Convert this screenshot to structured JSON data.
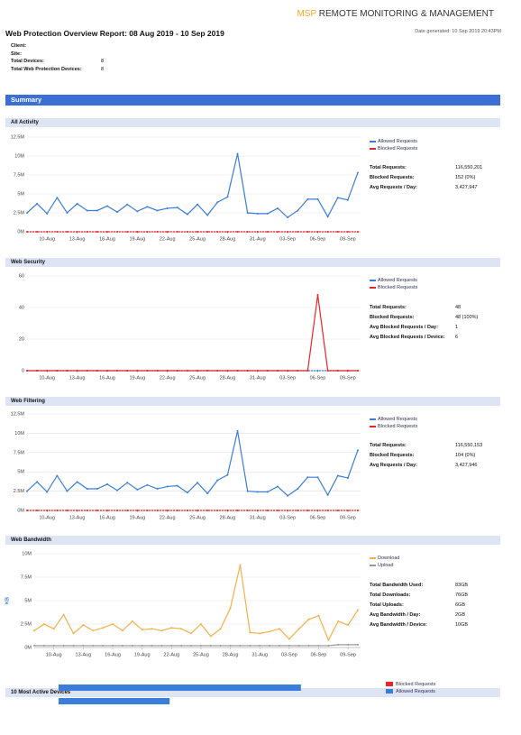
{
  "header": {
    "logo_brand": "MSP",
    "logo_text": "REMOTE MONITORING & MANAGEMENT",
    "title": "Web Protection Overview Report: 08 Aug 2019 - 10 Sep 2019",
    "generated": "Date generated: 10 Sep 2019 20:43PM"
  },
  "info": [
    [
      "Client:"
    ],
    [
      "Site:"
    ],
    [
      "Total Devices:",
      "8"
    ],
    [
      "Total Web Protection Devices:",
      "8"
    ]
  ],
  "summary": "Summary",
  "chart_data": [
    {
      "type": "line",
      "title": "All Activity",
      "categories": [
        null,
        null,
        "10-Aug",
        null,
        null,
        "13-Aug",
        null,
        null,
        "16-Aug",
        null,
        null,
        "19-Aug",
        null,
        null,
        "22-Aug",
        null,
        null,
        "25-Aug",
        null,
        null,
        "28-Aug",
        null,
        null,
        "31-Aug",
        null,
        null,
        "03-Sep",
        null,
        null,
        "06-Sep",
        null,
        null,
        "09-Sep",
        null
      ],
      "series": [
        {
          "name": "Allowed Requests",
          "color": "#3b7dd8",
          "values": [
            2.5,
            3.7,
            2.4,
            4.5,
            2.5,
            3.7,
            2.8,
            2.8,
            3.4,
            2.6,
            3.6,
            2.7,
            3.3,
            2.8,
            3.1,
            3.2,
            2.3,
            3.6,
            2.2,
            3.9,
            4.6,
            10.3,
            2.5,
            2.4,
            2.4,
            3.1,
            1.9,
            2.8,
            4.3,
            4.3,
            2.0,
            4.5,
            4.2,
            7.8
          ]
        },
        {
          "name": "Blocked Requests",
          "color": "#e8262a",
          "values": [
            0,
            0,
            0,
            0,
            0,
            0,
            0,
            0,
            0,
            0,
            0,
            0,
            0,
            0,
            0,
            0,
            0,
            0,
            0,
            0,
            0,
            0,
            0,
            0,
            0,
            0,
            0,
            0,
            0,
            0,
            0,
            0,
            0,
            0
          ]
        }
      ],
      "ylim": [
        0,
        12.5
      ],
      "yticks": [
        {
          "value": 0,
          "label": "0M"
        },
        {
          "value": 2.5,
          "label": "2.5M"
        },
        {
          "value": 5,
          "label": "5M"
        },
        {
          "value": 7.5,
          "label": "7.5M"
        },
        {
          "value": 10,
          "label": "10M"
        },
        {
          "value": 12.5,
          "label": "12.5M"
        }
      ],
      "grid": true,
      "stats": [
        [
          "Total Requests:",
          "116,550,201"
        ],
        [
          "Blocked Requests:",
          "152 (0%)"
        ],
        [
          "Avg Requests / Day:",
          "3,427,947"
        ]
      ]
    },
    {
      "type": "line",
      "title": "Web Security",
      "categories": [
        null,
        null,
        "10-Aug",
        null,
        null,
        "13-Aug",
        null,
        null,
        "16-Aug",
        null,
        null,
        "19-Aug",
        null,
        null,
        "22-Aug",
        null,
        null,
        "25-Aug",
        null,
        null,
        "28-Aug",
        null,
        null,
        "31-Aug",
        null,
        null,
        "03-Sep",
        null,
        null,
        "06-Sep",
        null,
        null,
        "09-Sep",
        null
      ],
      "series": [
        {
          "name": "Allowed Requests",
          "color": "#3b7dd8",
          "values": [
            0,
            0,
            0,
            0,
            0,
            0,
            0,
            0,
            0,
            0,
            0,
            0,
            0,
            0,
            0,
            0,
            0,
            0,
            0,
            0,
            0,
            0,
            0,
            0,
            0,
            0,
            0,
            0,
            0,
            0,
            0,
            0,
            0,
            0
          ]
        },
        {
          "name": "Blocked Requests",
          "color": "#e8262a",
          "values": [
            0,
            0,
            0,
            0,
            0,
            0,
            0,
            0,
            0,
            0,
            0,
            0,
            0,
            0,
            0,
            0,
            0,
            0,
            0,
            0,
            0,
            0,
            0,
            0,
            0,
            0,
            0,
            0,
            0,
            48,
            0,
            0,
            0,
            0
          ]
        }
      ],
      "ylim": [
        0,
        60
      ],
      "yticks": [
        0,
        20,
        40,
        60
      ],
      "grid": true,
      "stats": [
        [
          "Total Requests:",
          "48"
        ],
        [
          "Blocked Requests:",
          "48 (100%)"
        ],
        [
          "Avg Blocked Requests / Day:",
          "1"
        ],
        [
          "Avg Blocked Requests / Device:",
          "6"
        ]
      ]
    },
    {
      "type": "line",
      "title": "Web Filtering",
      "categories": [
        null,
        null,
        "10-Aug",
        null,
        null,
        "13-Aug",
        null,
        null,
        "16-Aug",
        null,
        null,
        "19-Aug",
        null,
        null,
        "22-Aug",
        null,
        null,
        "25-Aug",
        null,
        null,
        "28-Aug",
        null,
        null,
        "31-Aug",
        null,
        null,
        "03-Sep",
        null,
        null,
        "06-Sep",
        null,
        null,
        "09-Sep",
        null
      ],
      "series": [
        {
          "name": "Allowed Requests",
          "color": "#3b7dd8",
          "values": [
            2.5,
            3.7,
            2.4,
            4.5,
            2.5,
            3.7,
            2.8,
            2.8,
            3.4,
            2.6,
            3.6,
            2.7,
            3.3,
            2.8,
            3.1,
            3.2,
            2.3,
            3.6,
            2.2,
            3.9,
            4.6,
            10.3,
            2.5,
            2.4,
            2.4,
            3.1,
            1.9,
            2.8,
            4.3,
            4.3,
            2.0,
            4.5,
            4.2,
            7.8
          ]
        },
        {
          "name": "Blocked Requests",
          "color": "#e8262a",
          "values": [
            0,
            0,
            0,
            0,
            0,
            0,
            0,
            0,
            0,
            0,
            0,
            0,
            0,
            0,
            0,
            0,
            0,
            0,
            0,
            0,
            0,
            0,
            0,
            0,
            0,
            0,
            0,
            0,
            0,
            0,
            0,
            0,
            0,
            0
          ]
        }
      ],
      "ylim": [
        0,
        12.5
      ],
      "yticks": [
        {
          "value": 0,
          "label": "0M"
        },
        {
          "value": 2.5,
          "label": "2.5M"
        },
        {
          "value": 5,
          "label": "5M"
        },
        {
          "value": 7.5,
          "label": "7.5M"
        },
        {
          "value": 10,
          "label": "10M"
        },
        {
          "value": 12.5,
          "label": "12.5M"
        }
      ],
      "grid": true,
      "stats": [
        [
          "Total Requests:",
          "116,550,153"
        ],
        [
          "Blocked Requests:",
          "104 (0%)"
        ],
        [
          "Avg Requests / Day:",
          "3,427,946"
        ]
      ]
    },
    {
      "type": "line",
      "title": "Web Bandwidth",
      "y_label": "KB",
      "categories": [
        null,
        null,
        "10-Aug",
        null,
        null,
        "13-Aug",
        null,
        null,
        "16-Aug",
        null,
        null,
        "19-Aug",
        null,
        null,
        "22-Aug",
        null,
        null,
        "25-Aug",
        null,
        null,
        "28-Aug",
        null,
        null,
        "31-Aug",
        null,
        null,
        "03-Sep",
        null,
        null,
        "06-Sep",
        null,
        null,
        "09-Sep",
        null
      ],
      "series": [
        {
          "name": "Download",
          "color": "#f5b04a",
          "values": [
            1.8,
            2.5,
            2.0,
            3.5,
            1.5,
            2.4,
            1.8,
            2.1,
            2.5,
            1.8,
            2.8,
            1.9,
            2.0,
            1.8,
            2.1,
            2.0,
            1.5,
            2.5,
            1.2,
            2.0,
            4.2,
            8.8,
            1.6,
            1.5,
            1.7,
            2.0,
            0.9,
            2.0,
            3.0,
            3.4,
            0.8,
            2.8,
            2.4,
            4.0
          ]
        },
        {
          "name": "Upload",
          "color": "#999999",
          "values": [
            0.2,
            0.2,
            0.2,
            0.2,
            0.2,
            0.2,
            0.2,
            0.2,
            0.2,
            0.2,
            0.2,
            0.2,
            0.2,
            0.2,
            0.2,
            0.2,
            0.2,
            0.2,
            0.2,
            0.2,
            0.2,
            0.2,
            0.2,
            0.2,
            0.2,
            0.2,
            0.2,
            0.2,
            0.2,
            0.2,
            0.2,
            0.3,
            0.3,
            0.3
          ]
        }
      ],
      "ylim": [
        0,
        10
      ],
      "yticks": [
        {
          "value": 0,
          "label": "0M"
        },
        {
          "value": 2.5,
          "label": "2.5M"
        },
        {
          "value": 5,
          "label": "5M"
        },
        {
          "value": 7.5,
          "label": "7.5M"
        },
        {
          "value": 10,
          "label": "10M"
        }
      ],
      "grid": true,
      "stats": [
        [
          "Total Bandwidth Used:",
          "83GB"
        ],
        [
          "Total Downloads:",
          "76GB"
        ],
        [
          "Total Uploads:",
          "6GB"
        ],
        [
          "Avg Bandwidth / Day:",
          "2GB"
        ],
        [
          "Avg Bandwidth / Device:",
          "10GB"
        ]
      ]
    },
    {
      "type": "hbar",
      "title": "10 Most Active Devices",
      "categories": [
        null,
        null
      ],
      "series": [
        {
          "name": "Blocked Requests",
          "color": "#e8262a",
          "values": [
            0,
            0
          ]
        },
        {
          "name": "Allowed Requests",
          "color": "#3b7dd8",
          "values": [
            48,
            22
          ]
        }
      ],
      "xlim": [
        0,
        60
      ]
    }
  ]
}
